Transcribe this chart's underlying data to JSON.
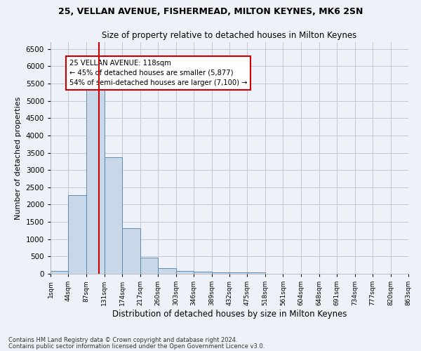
{
  "title1": "25, VELLAN AVENUE, FISHERMEAD, MILTON KEYNES, MK6 2SN",
  "title2": "Size of property relative to detached houses in Milton Keynes",
  "xlabel": "Distribution of detached houses by size in Milton Keynes",
  "ylabel": "Number of detached properties",
  "footer1": "Contains HM Land Registry data © Crown copyright and database right 2024.",
  "footer2": "Contains public sector information licensed under the Open Government Licence v3.0.",
  "annotation_line1": "25 VELLAN AVENUE: 118sqm",
  "annotation_line2": "← 45% of detached houses are smaller (5,877)",
  "annotation_line3": "54% of semi-detached houses are larger (7,100) →",
  "bar_color": "#c8d8e8",
  "bar_edge_color": "#5080a8",
  "grid_color": "#c0c8d8",
  "vline_color": "#cc0000",
  "vline_x": 118,
  "bin_edges": [
    1,
    44,
    87,
    131,
    174,
    217,
    260,
    303,
    346,
    389,
    432,
    475,
    518,
    561,
    604,
    648,
    691,
    734,
    777,
    820,
    863
  ],
  "bar_heights": [
    75,
    2275,
    5450,
    3375,
    1325,
    475,
    160,
    80,
    55,
    50,
    50,
    50,
    0,
    0,
    0,
    0,
    0,
    0,
    0,
    0
  ],
  "ylim": [
    0,
    6700
  ],
  "yticks": [
    0,
    500,
    1000,
    1500,
    2000,
    2500,
    3000,
    3500,
    4000,
    4500,
    5000,
    5500,
    6000,
    6500
  ],
  "bg_color": "#eef2f8",
  "plot_bg_color": "#eef2f8"
}
